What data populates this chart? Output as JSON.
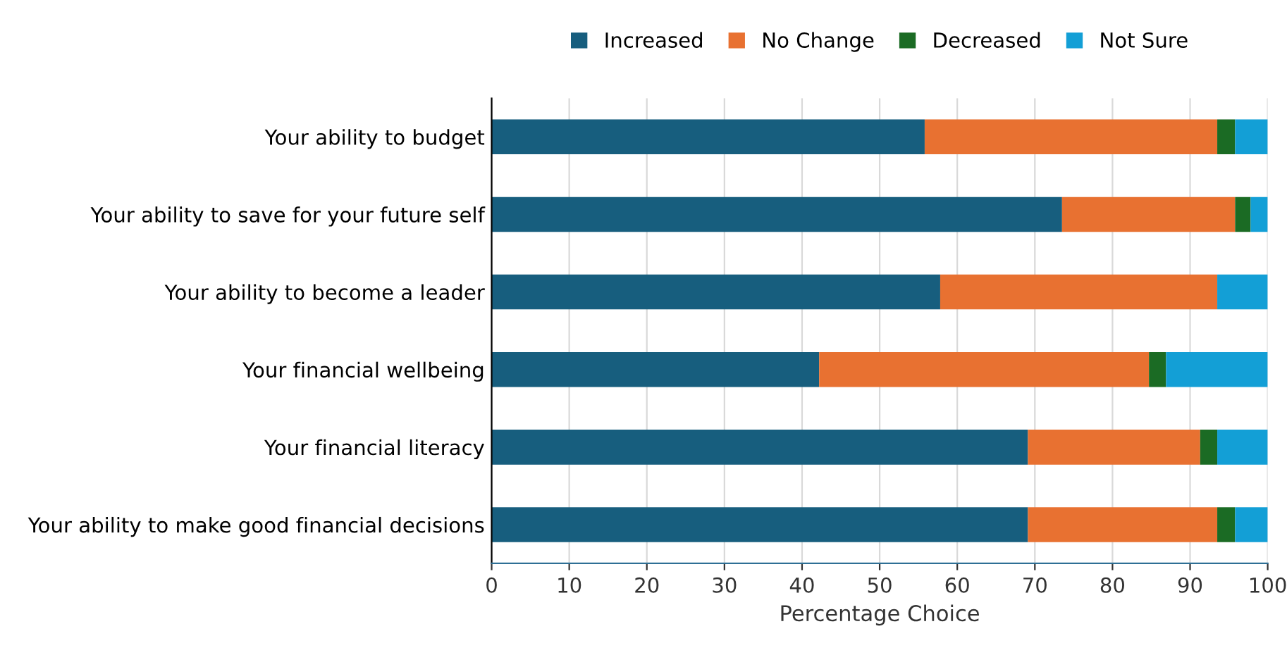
{
  "chart_data": {
    "type": "bar",
    "orientation": "horizontal",
    "stacked": true,
    "categories": [
      "Your ability to budget",
      "Your ability to save for your future self",
      "Your ability to become a leader",
      "Your financial wellbeing",
      "Your financial literacy",
      "Your ability to make good financial decisions"
    ],
    "series": [
      {
        "name": "Increased",
        "color": "#175e7e",
        "values": [
          55.8,
          73.5,
          57.8,
          42.2,
          69.1,
          69.1
        ]
      },
      {
        "name": "No Change",
        "color": "#e87131",
        "values": [
          37.7,
          22.3,
          35.7,
          42.5,
          22.2,
          24.4
        ]
      },
      {
        "name": "Decreased",
        "color": "#1b6b24",
        "values": [
          2.3,
          2.0,
          0,
          2.2,
          2.2,
          2.3
        ]
      },
      {
        "name": "Not Sure",
        "color": "#139fd6",
        "values": [
          4.2,
          2.2,
          6.5,
          13.1,
          6.5,
          4.2
        ]
      }
    ],
    "xlabel": "Percentage Choice",
    "xlim": [
      0,
      100
    ],
    "xticks": [
      0,
      10,
      20,
      30,
      40,
      50,
      60,
      70,
      80,
      90,
      100
    ],
    "grid": "x",
    "legend": "top"
  }
}
